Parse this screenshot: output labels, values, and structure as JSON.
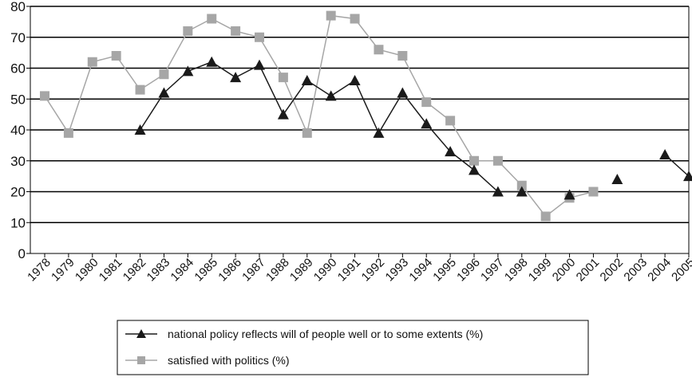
{
  "chart_data": {
    "type": "line",
    "title": "",
    "xlabel": "",
    "ylabel": "",
    "ylim": [
      0,
      80
    ],
    "yticks": [
      "0",
      "10",
      "20",
      "30",
      "40",
      "50",
      "60",
      "70",
      "80"
    ],
    "grid": true,
    "legend_position": "bottom",
    "categories": [
      "1978",
      "1979",
      "1980",
      "1981",
      "1982",
      "1983",
      "1984",
      "1985",
      "1986",
      "1987",
      "1988",
      "1989",
      "1990",
      "1991",
      "1992",
      "1993",
      "1994",
      "1995",
      "1996",
      "1997",
      "1998",
      "1999",
      "2000",
      "2001",
      "2002",
      "2003",
      "2004",
      "2005"
    ],
    "series": [
      {
        "name": "national policy reflects will of people well or to some extents (%)",
        "marker": "triangle",
        "color": "#1a1a1a",
        "values": [
          null,
          null,
          null,
          null,
          40,
          52,
          59,
          62,
          57,
          61,
          45,
          56,
          51,
          56,
          39,
          52,
          42,
          33,
          27,
          20,
          20,
          null,
          19,
          null,
          24,
          null,
          32,
          25
        ]
      },
      {
        "name": "satisfied with politics (%)",
        "marker": "square",
        "color": "#a6a6a6",
        "values": [
          51,
          39,
          62,
          64,
          53,
          58,
          72,
          76,
          72,
          70,
          57,
          39,
          77,
          76,
          66,
          64,
          49,
          43,
          30,
          30,
          22,
          12,
          18,
          20,
          null,
          null,
          null,
          null
        ]
      }
    ]
  }
}
